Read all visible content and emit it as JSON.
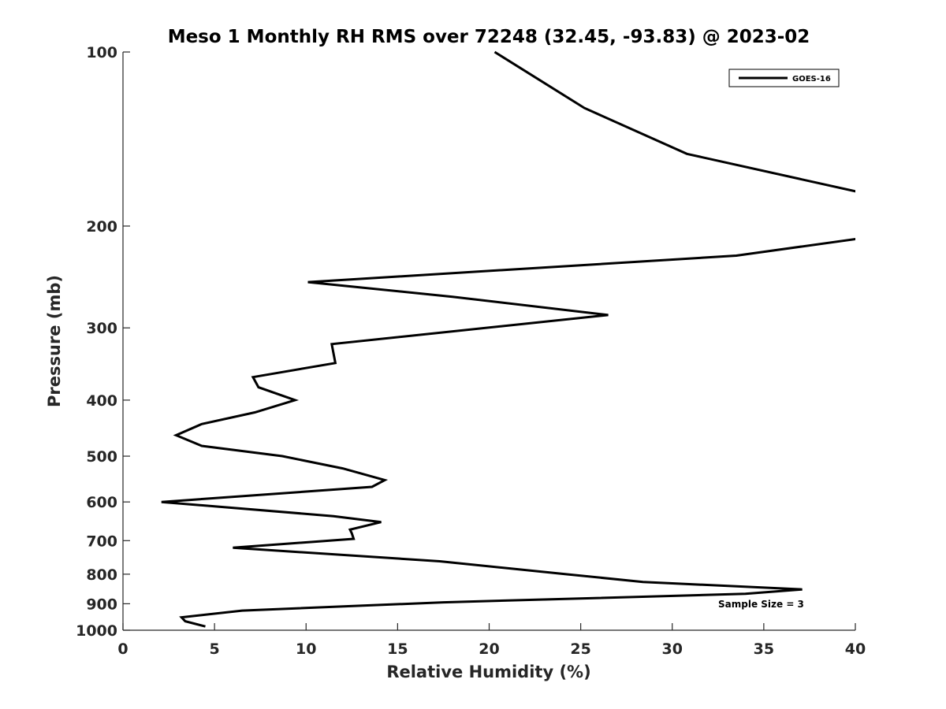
{
  "chart_data": {
    "type": "line",
    "title": "Meso 1 Monthly RH RMS over 72248 (32.45, -93.83) @ 2023-02",
    "xlabel": "Relative Humidity (%)",
    "ylabel": "Pressure (mb)",
    "xlim": [
      0,
      40
    ],
    "ylim": [
      100,
      1000
    ],
    "y_scale": "log",
    "y_inverted": true,
    "grid": false,
    "x_ticks": [
      "0",
      "5",
      "10",
      "15",
      "20",
      "25",
      "30",
      "35",
      "40"
    ],
    "y_ticks": [
      "100",
      "200",
      "300",
      "400",
      "500",
      "600",
      "700",
      "800",
      "900",
      "1000"
    ],
    "legend": {
      "position": "top-right",
      "entries": [
        "GOES-16"
      ]
    },
    "annotation": "Sample Size = 3",
    "series": [
      {
        "name": "GOES-16",
        "color": "#000000",
        "points": [
          [
            20.3,
            100
          ],
          [
            25.2,
            125
          ],
          [
            30.8,
            150
          ],
          [
            40.3,
            175
          ],
          [
            40.3,
            210
          ],
          [
            33.5,
            225
          ],
          [
            10.1,
            250
          ],
          [
            18.0,
            265
          ],
          [
            26.5,
            285
          ],
          [
            11.4,
            320
          ],
          [
            11.6,
            345
          ],
          [
            7.1,
            365
          ],
          [
            7.4,
            380
          ],
          [
            9.4,
            400
          ],
          [
            7.2,
            420
          ],
          [
            4.3,
            440
          ],
          [
            2.9,
            460
          ],
          [
            4.3,
            480
          ],
          [
            8.7,
            500
          ],
          [
            12.0,
            525
          ],
          [
            14.3,
            550
          ],
          [
            13.6,
            565
          ],
          [
            2.1,
            600
          ],
          [
            11.5,
            635
          ],
          [
            14.1,
            650
          ],
          [
            12.4,
            670
          ],
          [
            12.5,
            680
          ],
          [
            12.6,
            695
          ],
          [
            6.0,
            720
          ],
          [
            17.3,
            760
          ],
          [
            24.2,
            800
          ],
          [
            28.4,
            825
          ],
          [
            37.1,
            850
          ],
          [
            34.0,
            865
          ],
          [
            17.5,
            895
          ],
          [
            6.5,
            925
          ],
          [
            3.2,
            950
          ],
          [
            3.4,
            965
          ],
          [
            4.5,
            985
          ]
        ]
      }
    ]
  }
}
